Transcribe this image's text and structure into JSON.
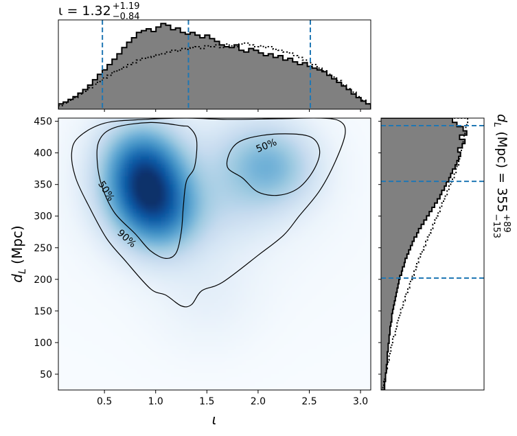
{
  "chart_data": {
    "type": "heatmap",
    "description_series": [
      "posterior (filled histogram)",
      "prior (dotted)"
    ],
    "joint": {
      "xlabel": "ι",
      "ylabel": "d_L (Mpc)",
      "xlim": [
        0.05,
        3.1
      ],
      "ylim": [
        25,
        455
      ],
      "xticks": [
        0.5,
        1.0,
        1.5,
        2.0,
        2.5,
        3.0
      ],
      "xtick_labels": [
        "0.5",
        "1.0",
        "1.5",
        "2.0",
        "2.5",
        "3.0"
      ],
      "yticks": [
        50,
        100,
        150,
        200,
        250,
        300,
        350,
        400,
        450
      ],
      "ytick_labels": [
        "50",
        "100",
        "150",
        "200",
        "250",
        "300",
        "350",
        "400",
        "450"
      ],
      "colormap": "Blues",
      "density_peaks": [
        {
          "x": 0.85,
          "y": 395,
          "w": 0.9
        },
        {
          "x": 0.95,
          "y": 355,
          "w": 0.7
        },
        {
          "x": 1.05,
          "y": 300,
          "w": 1.0
        },
        {
          "x": 0.8,
          "y": 330,
          "w": 0.5
        },
        {
          "x": 2.2,
          "y": 375,
          "w": 0.55
        },
        {
          "x": 1.9,
          "y": 395,
          "w": 0.4
        },
        {
          "x": 1.75,
          "y": 320,
          "w": 0.25
        },
        {
          "x": 1.5,
          "y": 180,
          "w": 0.12
        }
      ],
      "contours": [
        {
          "label": "50%",
          "label_pos": {
            "x": 0.52,
            "y": 340
          },
          "label_angle": 58,
          "path": [
            [
              1.25,
              443
            ],
            [
              0.95,
              448
            ],
            [
              0.6,
              440
            ],
            [
              0.45,
              420
            ],
            [
              0.43,
              385
            ],
            [
              0.48,
              345
            ],
            [
              0.6,
              305
            ],
            [
              0.8,
              272
            ],
            [
              0.95,
              245
            ],
            [
              1.1,
              233
            ],
            [
              1.2,
              242
            ],
            [
              1.25,
              275
            ],
            [
              1.27,
              315
            ],
            [
              1.3,
              355
            ],
            [
              1.38,
              378
            ],
            [
              1.4,
              420
            ],
            [
              1.33,
              440
            ],
            [
              1.25,
              443
            ]
          ]
        },
        {
          "label": "50%",
          "label_pos": {
            "x": 2.08,
            "y": 412
          },
          "label_angle": -22,
          "path": [
            [
              1.75,
              408
            ],
            [
              1.9,
              423
            ],
            [
              2.2,
              430
            ],
            [
              2.5,
              426
            ],
            [
              2.6,
              405
            ],
            [
              2.55,
              375
            ],
            [
              2.4,
              345
            ],
            [
              2.2,
              333
            ],
            [
              2.0,
              338
            ],
            [
              1.85,
              360
            ],
            [
              1.7,
              378
            ],
            [
              1.75,
              408
            ]
          ]
        },
        {
          "label": "90%",
          "label_pos": {
            "x": 0.72,
            "y": 265
          },
          "label_angle": 42,
          "path": [
            [
              0.9,
              453
            ],
            [
              1.3,
              455
            ],
            [
              1.7,
              453
            ],
            [
              2.2,
              454
            ],
            [
              2.6,
              455
            ],
            [
              2.8,
              450
            ],
            [
              2.85,
              430
            ],
            [
              2.75,
              385
            ],
            [
              2.6,
              340
            ],
            [
              2.4,
              300
            ],
            [
              2.25,
              270
            ],
            [
              2.0,
              238
            ],
            [
              1.65,
              195
            ],
            [
              1.45,
              182
            ],
            [
              1.35,
              160
            ],
            [
              1.25,
              158
            ],
            [
              1.1,
              175
            ],
            [
              0.95,
              185
            ],
            [
              0.7,
              230
            ],
            [
              0.52,
              265
            ],
            [
              0.35,
              315
            ],
            [
              0.22,
              360
            ],
            [
              0.18,
              400
            ],
            [
              0.25,
              425
            ],
            [
              0.5,
              447
            ],
            [
              0.9,
              453
            ]
          ]
        }
      ]
    },
    "top_marginal": {
      "title_main": "ι = 1.32",
      "title_sup": "+1.19",
      "title_sub": "−0.84",
      "quantile_lines": [
        0.48,
        1.32,
        2.51
      ],
      "bin_edges_range": [
        0.05,
        3.1
      ],
      "posterior": [
        0.06,
        0.08,
        0.11,
        0.14,
        0.18,
        0.22,
        0.27,
        0.33,
        0.39,
        0.44,
        0.5,
        0.56,
        0.62,
        0.69,
        0.75,
        0.8,
        0.86,
        0.88,
        0.9,
        0.87,
        0.92,
        0.96,
        0.94,
        0.89,
        0.91,
        0.86,
        0.84,
        0.86,
        0.83,
        0.8,
        0.83,
        0.79,
        0.76,
        0.72,
        0.7,
        0.69,
        0.72,
        0.66,
        0.64,
        0.68,
        0.66,
        0.63,
        0.6,
        0.62,
        0.58,
        0.6,
        0.55,
        0.57,
        0.53,
        0.5,
        0.52,
        0.48,
        0.46,
        0.44,
        0.42,
        0.38,
        0.34,
        0.3,
        0.26,
        0.22,
        0.17,
        0.13,
        0.09,
        0.06
      ],
      "prior": [
        0.04,
        0.07,
        0.1,
        0.13,
        0.17,
        0.2,
        0.24,
        0.28,
        0.31,
        0.35,
        0.38,
        0.42,
        0.44,
        0.47,
        0.5,
        0.52,
        0.55,
        0.57,
        0.58,
        0.59,
        0.61,
        0.62,
        0.64,
        0.66,
        0.65,
        0.68,
        0.67,
        0.69,
        0.7,
        0.68,
        0.71,
        0.7,
        0.72,
        0.69,
        0.73,
        0.71,
        0.7,
        0.73,
        0.74,
        0.72,
        0.7,
        0.71,
        0.69,
        0.7,
        0.67,
        0.66,
        0.64,
        0.63,
        0.6,
        0.58,
        0.55,
        0.52,
        0.5,
        0.46,
        0.43,
        0.39,
        0.36,
        0.32,
        0.27,
        0.23,
        0.19,
        0.14,
        0.1,
        0.06
      ]
    },
    "right_marginal": {
      "label_main": "d",
      "label_sub": "L",
      "label_rest": " (Mpc) = 355",
      "label_sup": "+89",
      "label_sub2": "−153",
      "quantile_lines": [
        202,
        355,
        443
      ],
      "bin_edges_range": [
        25,
        455
      ],
      "posterior": [
        0.04,
        0.04,
        0.05,
        0.05,
        0.06,
        0.06,
        0.07,
        0.07,
        0.07,
        0.08,
        0.08,
        0.09,
        0.09,
        0.1,
        0.1,
        0.11,
        0.12,
        0.12,
        0.13,
        0.14,
        0.15,
        0.16,
        0.17,
        0.18,
        0.19,
        0.2,
        0.21,
        0.23,
        0.24,
        0.26,
        0.27,
        0.29,
        0.31,
        0.33,
        0.35,
        0.37,
        0.4,
        0.42,
        0.45,
        0.48,
        0.51,
        0.54,
        0.57,
        0.6,
        0.63,
        0.66,
        0.68,
        0.71,
        0.73,
        0.76,
        0.78,
        0.8,
        0.83,
        0.85,
        0.87,
        0.89,
        0.86,
        0.91,
        0.94,
        0.88,
        0.96,
        0.92,
        0.85,
        0.8
      ],
      "prior": [
        0.02,
        0.03,
        0.04,
        0.05,
        0.06,
        0.07,
        0.08,
        0.09,
        0.1,
        0.11,
        0.12,
        0.13,
        0.14,
        0.16,
        0.17,
        0.18,
        0.19,
        0.21,
        0.22,
        0.24,
        0.25,
        0.27,
        0.28,
        0.3,
        0.32,
        0.33,
        0.35,
        0.37,
        0.39,
        0.4,
        0.42,
        0.44,
        0.46,
        0.48,
        0.5,
        0.52,
        0.54,
        0.56,
        0.58,
        0.6,
        0.62,
        0.64,
        0.66,
        0.68,
        0.7,
        0.72,
        0.74,
        0.76,
        0.78,
        0.8,
        0.82,
        0.84,
        0.85,
        0.87,
        0.88,
        0.89,
        0.9,
        0.91,
        0.92,
        0.93,
        0.94,
        0.95,
        0.96,
        0.97
      ]
    }
  }
}
